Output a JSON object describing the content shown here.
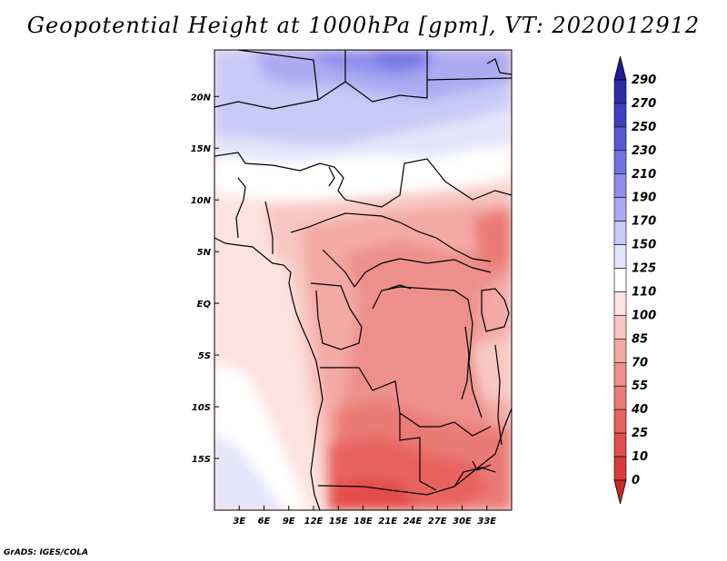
{
  "title": "Geopotential Height at 1000hPa [gpm], VT: 2020012912",
  "footer": "GrADS: IGES/COLA",
  "map": {
    "lon_range": [
      0,
      36
    ],
    "lat_range": [
      -20,
      24.5
    ],
    "x_ticks": [
      {
        "value": 3,
        "label": "3E"
      },
      {
        "value": 6,
        "label": "6E"
      },
      {
        "value": 9,
        "label": "9E"
      },
      {
        "value": 12,
        "label": "12E"
      },
      {
        "value": 15,
        "label": "15E"
      },
      {
        "value": 18,
        "label": "18E"
      },
      {
        "value": 21,
        "label": "21E"
      },
      {
        "value": 24,
        "label": "24E"
      },
      {
        "value": 27,
        "label": "27E"
      },
      {
        "value": 30,
        "label": "30E"
      },
      {
        "value": 33,
        "label": "33E"
      }
    ],
    "y_ticks": [
      {
        "value": 20,
        "label": "20N"
      },
      {
        "value": 15,
        "label": "15N"
      },
      {
        "value": 10,
        "label": "10N"
      },
      {
        "value": 5,
        "label": "5N"
      },
      {
        "value": 0,
        "label": "EQ"
      },
      {
        "value": -5,
        "label": "5S"
      },
      {
        "value": -10,
        "label": "10S"
      },
      {
        "value": -15,
        "label": "15S"
      }
    ]
  },
  "colorbar": {
    "levels": [
      {
        "label": "0",
        "color": "#c8282a"
      },
      {
        "label": "10",
        "color": "#d9393a"
      },
      {
        "label": "25",
        "color": "#e34e4c"
      },
      {
        "label": "40",
        "color": "#e8635f"
      },
      {
        "label": "55",
        "color": "#ea7a75"
      },
      {
        "label": "70",
        "color": "#ed908b"
      },
      {
        "label": "85",
        "color": "#f3a9a4"
      },
      {
        "label": "100",
        "color": "#f8c8c3"
      },
      {
        "label": "110",
        "color": "#fce3e0"
      },
      {
        "label": "125",
        "color": "#ffffff"
      },
      {
        "label": "150",
        "color": "#e4e4fb"
      },
      {
        "label": "170",
        "color": "#c9c9f7"
      },
      {
        "label": "190",
        "color": "#ababf2"
      },
      {
        "label": "210",
        "color": "#8f8fec"
      },
      {
        "label": "230",
        "color": "#7272e2"
      },
      {
        "label": "250",
        "color": "#5858d4"
      },
      {
        "label": "270",
        "color": "#3f3fc2"
      },
      {
        "label": "290",
        "color": "#2c2ca8"
      }
    ],
    "top_color": "#1e1e94"
  }
}
